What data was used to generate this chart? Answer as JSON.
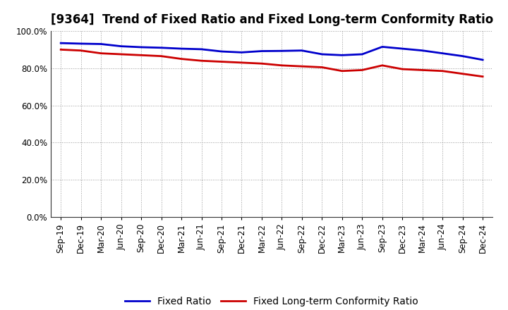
{
  "title": "[9364]  Trend of Fixed Ratio and Fixed Long-term Conformity Ratio",
  "x_labels": [
    "Sep-19",
    "Dec-19",
    "Mar-20",
    "Jun-20",
    "Sep-20",
    "Dec-20",
    "Mar-21",
    "Jun-21",
    "Sep-21",
    "Dec-21",
    "Mar-22",
    "Jun-22",
    "Sep-22",
    "Dec-22",
    "Mar-23",
    "Jun-23",
    "Sep-23",
    "Dec-23",
    "Mar-24",
    "Jun-24",
    "Sep-24",
    "Dec-24"
  ],
  "fixed_ratio": [
    93.5,
    93.2,
    93.0,
    91.8,
    91.3,
    91.0,
    90.5,
    90.2,
    89.0,
    88.5,
    89.2,
    89.3,
    89.5,
    87.5,
    87.0,
    87.5,
    91.5,
    90.5,
    89.5,
    88.0,
    86.5,
    84.5
  ],
  "fixed_lt_ratio": [
    90.0,
    89.5,
    88.0,
    87.5,
    87.0,
    86.5,
    85.0,
    84.0,
    83.5,
    83.0,
    82.5,
    81.5,
    81.0,
    80.5,
    78.5,
    79.0,
    81.5,
    79.5,
    79.0,
    78.5,
    77.0,
    75.5
  ],
  "fixed_ratio_color": "#0000CC",
  "fixed_lt_ratio_color": "#CC0000",
  "ylim": [
    0,
    100
  ],
  "yticks": [
    0,
    20,
    40,
    60,
    80,
    100
  ],
  "background_color": "#ffffff",
  "grid_color": "#999999",
  "legend_fixed_ratio": "Fixed Ratio",
  "legend_fixed_lt_ratio": "Fixed Long-term Conformity Ratio",
  "line_width": 2.0,
  "title_fontsize": 12,
  "tick_fontsize": 8.5,
  "legend_fontsize": 10
}
